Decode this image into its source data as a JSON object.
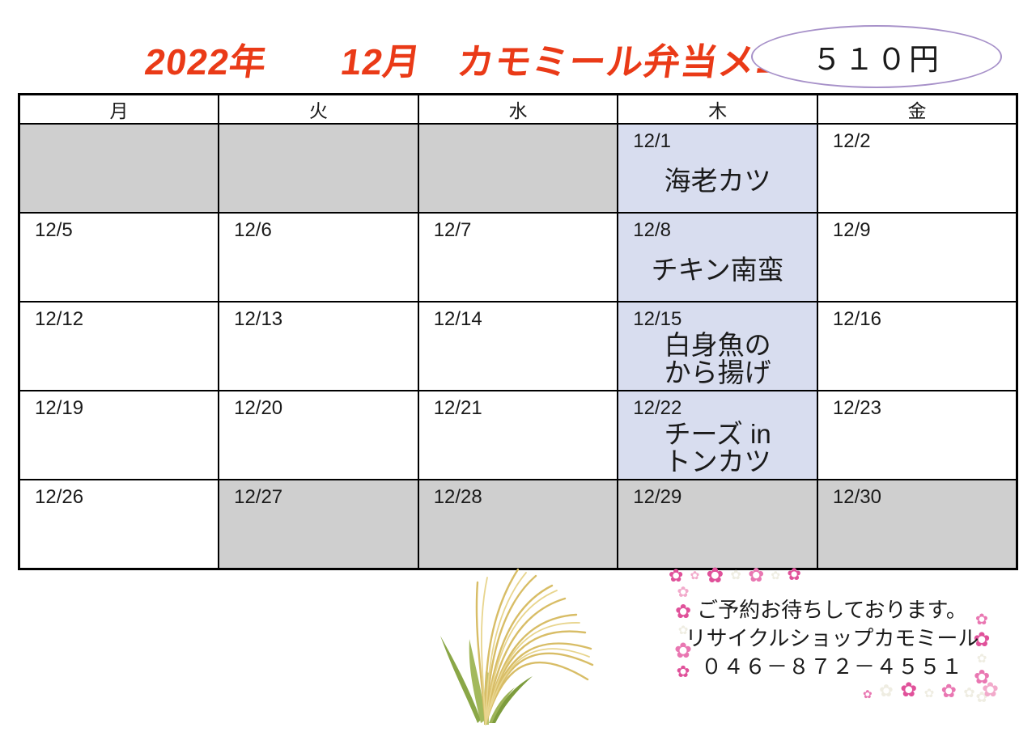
{
  "page": {
    "title": "2022年　　12月　カモミール弁当メニュー",
    "price_badge": "５１０円"
  },
  "calendar": {
    "weekdays": [
      "月",
      "火",
      "水",
      "木",
      "金"
    ],
    "rows": [
      {
        "cells": [
          {
            "date": "",
            "bg": "gray"
          },
          {
            "date": "",
            "bg": "gray"
          },
          {
            "date": "",
            "bg": "gray"
          },
          {
            "date": "12/1",
            "menu": [
              "海老カツ"
            ],
            "bg": "blue"
          },
          {
            "date": "12/2",
            "bg": "white"
          }
        ]
      },
      {
        "cells": [
          {
            "date": "12/5",
            "bg": "white"
          },
          {
            "date": "12/6",
            "bg": "white"
          },
          {
            "date": "12/7",
            "bg": "white"
          },
          {
            "date": "12/8",
            "menu": [
              "チキン南蛮"
            ],
            "bg": "blue"
          },
          {
            "date": "12/9",
            "bg": "white"
          }
        ]
      },
      {
        "cells": [
          {
            "date": "12/12",
            "bg": "white"
          },
          {
            "date": "12/13",
            "bg": "white"
          },
          {
            "date": "12/14",
            "bg": "white"
          },
          {
            "date": "12/15",
            "menu": [
              "白身魚の",
              "から揚げ"
            ],
            "bg": "blue"
          },
          {
            "date": "12/16",
            "bg": "white"
          }
        ]
      },
      {
        "cells": [
          {
            "date": "12/19",
            "bg": "white"
          },
          {
            "date": "12/20",
            "bg": "white"
          },
          {
            "date": "12/21",
            "bg": "white"
          },
          {
            "date": "12/22",
            "menu": [
              "チーズ in",
              "トンカツ"
            ],
            "bg": "blue"
          },
          {
            "date": "12/23",
            "bg": "white"
          }
        ]
      },
      {
        "cells": [
          {
            "date": "12/26",
            "bg": "white"
          },
          {
            "date": "12/27",
            "bg": "gray"
          },
          {
            "date": "12/28",
            "bg": "gray"
          },
          {
            "date": "12/29",
            "bg": "gray"
          },
          {
            "date": "12/30",
            "bg": "gray"
          }
        ]
      }
    ]
  },
  "footer": {
    "line1": "ご予約お待ちしております。",
    "line2": "リサイクルショップカモミール",
    "phone": "０４６－８７２－４５５１"
  },
  "colors": {
    "title_red": "#ea3a17",
    "oval_purple": "#a791c9",
    "thursday_blue": "#d8ddef",
    "closed_gray": "#cfcfcf",
    "border_black": "#000000"
  },
  "decor": {
    "flower_icon": "✿",
    "grass_icon": "pampas-grass",
    "flower_colors": [
      "#e0519a",
      "#f2aacb",
      "#efede2",
      "#e977b2"
    ],
    "chains": {
      "top_left_h": [
        [
          22,
          0
        ],
        [
          14,
          1
        ],
        [
          26,
          0
        ],
        [
          16,
          2
        ],
        [
          24,
          3
        ],
        [
          14,
          2
        ],
        [
          21,
          0
        ]
      ],
      "top_left_v": [
        [
          18,
          1
        ],
        [
          24,
          0
        ],
        [
          15,
          2
        ],
        [
          26,
          3
        ],
        [
          20,
          0
        ]
      ],
      "bottom_right_v": [
        [
          19,
          3
        ],
        [
          25,
          0
        ],
        [
          15,
          2
        ],
        [
          24,
          3
        ],
        [
          18,
          2
        ]
      ],
      "bottom_right_h": [
        [
          14,
          3
        ],
        [
          21,
          2
        ],
        [
          25,
          0
        ],
        [
          15,
          2
        ],
        [
          23,
          3
        ],
        [
          17,
          2
        ],
        [
          25,
          1
        ]
      ]
    }
  }
}
